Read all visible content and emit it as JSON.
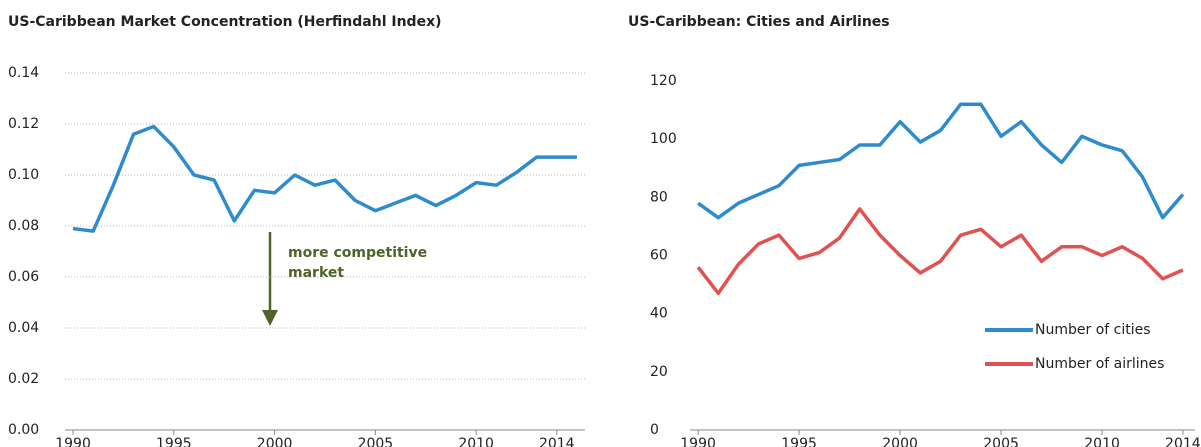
{
  "chart_data": [
    {
      "type": "line",
      "title": "US-Caribbean Market Concentration (Herfindahl Index)",
      "annotation": "more competitive market",
      "x": [
        1990,
        1991,
        1992,
        1993,
        1994,
        1995,
        1996,
        1997,
        1998,
        1999,
        2000,
        2001,
        2002,
        2003,
        2004,
        2005,
        2006,
        2007,
        2008,
        2009,
        2010,
        2011,
        2012,
        2013,
        2014,
        2015
      ],
      "series": [
        {
          "name": null,
          "color": "#2e8bcc",
          "values": [
            0.079,
            0.078,
            0.096,
            0.116,
            0.119,
            0.111,
            0.1,
            0.098,
            0.082,
            0.094,
            0.093,
            0.1,
            0.096,
            0.098,
            0.09,
            0.086,
            0.089,
            0.092,
            0.088,
            0.092,
            0.097,
            0.096,
            0.101,
            0.107,
            0.107,
            0.107
          ]
        }
      ],
      "xlim": [
        1989.6,
        2015.4
      ],
      "xticks": [
        1990,
        1995,
        2000,
        2005,
        2010,
        2014
      ],
      "ylim": [
        0,
        0.14
      ],
      "yticks": [
        {
          "value": 0,
          "label": "0.00"
        },
        {
          "value": 0.02,
          "label": "0.02"
        },
        {
          "value": 0.04,
          "label": "0.04"
        },
        {
          "value": 0.06,
          "label": "0.06"
        },
        {
          "value": 0.08,
          "label": "0.08"
        },
        {
          "value": 0.1,
          "label": "0.10"
        },
        {
          "value": 0.12,
          "label": "0.12"
        },
        {
          "value": 0.14,
          "label": "0.14"
        }
      ],
      "grid": true
    },
    {
      "type": "line",
      "title": "US-Caribbean: Cities and Airlines",
      "x": [
        1990,
        1991,
        1992,
        1993,
        1994,
        1995,
        1996,
        1997,
        1998,
        1999,
        2000,
        2001,
        2002,
        2003,
        2004,
        2005,
        2006,
        2007,
        2008,
        2009,
        2010,
        2011,
        2012,
        2013,
        2014
      ],
      "series": [
        {
          "name": "Number of cities",
          "color": "#2e8bcc",
          "values": [
            78,
            73,
            78,
            81,
            84,
            91,
            92,
            93,
            98,
            98,
            106,
            99,
            103,
            112,
            112,
            101,
            106,
            98,
            92,
            101,
            98,
            96,
            87,
            73,
            81
          ]
        },
        {
          "name": "Number of airlines",
          "color": "#e05252",
          "values": [
            56,
            47,
            57,
            64,
            67,
            59,
            61,
            66,
            76,
            67,
            60,
            54,
            58,
            67,
            69,
            63,
            67,
            58,
            63,
            63,
            60,
            63,
            59,
            52,
            55
          ]
        }
      ],
      "xlim": [
        1989.6,
        2014.6
      ],
      "xticks": [
        1990,
        1995,
        2000,
        2005,
        2010,
        2014
      ],
      "ylim": [
        0,
        120
      ],
      "yticks": [
        0,
        20,
        40,
        60,
        80,
        100,
        120
      ],
      "grid": false,
      "legend": "lower-right"
    }
  ]
}
